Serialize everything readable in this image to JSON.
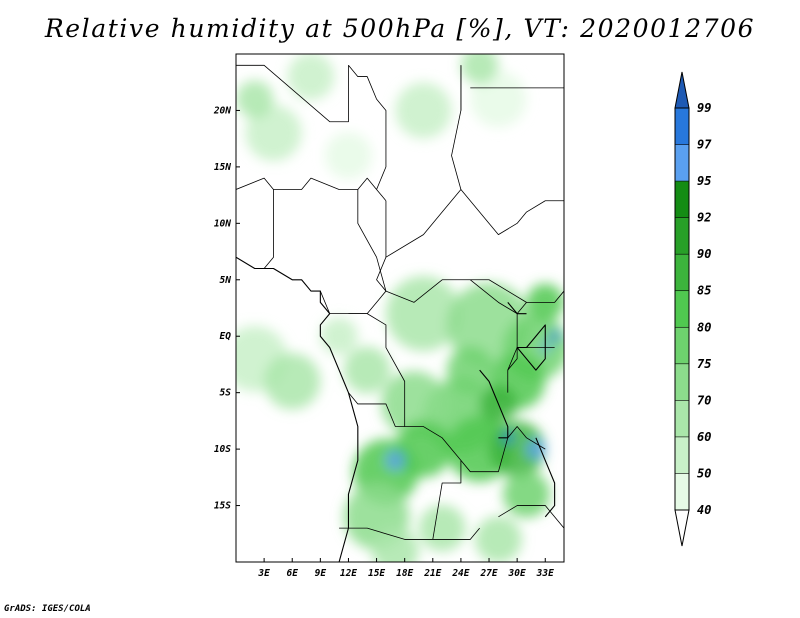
{
  "title": "Relative humidity at 500hPa [%], VT: 2020012706",
  "credit": "GrADS: IGES/COLA",
  "map": {
    "lon_range": [
      0,
      35
    ],
    "lat_range": [
      -20,
      25
    ],
    "x_ticks": [
      {
        "value": 3,
        "label": "3E"
      },
      {
        "value": 6,
        "label": "6E"
      },
      {
        "value": 9,
        "label": "9E"
      },
      {
        "value": 12,
        "label": "12E"
      },
      {
        "value": 15,
        "label": "15E"
      },
      {
        "value": 18,
        "label": "18E"
      },
      {
        "value": 21,
        "label": "21E"
      },
      {
        "value": 24,
        "label": "24E"
      },
      {
        "value": 27,
        "label": "27E"
      },
      {
        "value": 30,
        "label": "30E"
      },
      {
        "value": 33,
        "label": "33E"
      }
    ],
    "y_ticks": [
      {
        "value": 20,
        "label": "20N"
      },
      {
        "value": 15,
        "label": "15N"
      },
      {
        "value": 10,
        "label": "10N"
      },
      {
        "value": 5,
        "label": "5N"
      },
      {
        "value": 0,
        "label": "EQ"
      },
      {
        "value": -5,
        "label": "5S"
      },
      {
        "value": -10,
        "label": "10S"
      },
      {
        "value": -15,
        "label": "15S"
      }
    ]
  },
  "colorbar": {
    "levels": [
      {
        "value": 40,
        "label": "40",
        "color": "#e6fae6"
      },
      {
        "value": 50,
        "label": "50",
        "color": "#c8f0c8"
      },
      {
        "value": 60,
        "label": "60",
        "color": "#aae6aa"
      },
      {
        "value": 70,
        "label": "70",
        "color": "#8cdc8c"
      },
      {
        "value": 75,
        "label": "75",
        "color": "#6ed26e"
      },
      {
        "value": 80,
        "label": "80",
        "color": "#50c850"
      },
      {
        "value": 85,
        "label": "85",
        "color": "#3cb43c"
      },
      {
        "value": 90,
        "label": "90",
        "color": "#28a028"
      },
      {
        "value": 92,
        "label": "92",
        "color": "#148c14"
      },
      {
        "value": 95,
        "label": "95",
        "color": "#5aa0f0"
      },
      {
        "value": 97,
        "label": "97",
        "color": "#2878dc"
      },
      {
        "value": 99,
        "label": "99",
        "color": "#1e5ab4"
      }
    ],
    "low_color": "#ffffff",
    "high_color": "#1e5ab4"
  },
  "humidity_blobs": [
    {
      "lon": 8,
      "lat": 23,
      "r": 2.5,
      "level": 1
    },
    {
      "lon": 4,
      "lat": 18,
      "r": 3,
      "level": 1
    },
    {
      "lon": 20,
      "lat": 20,
      "r": 3,
      "level": 1
    },
    {
      "lon": 28,
      "lat": 21,
      "r": 3,
      "level": 0
    },
    {
      "lon": 12,
      "lat": 16,
      "r": 2.5,
      "level": 0
    },
    {
      "lon": 2,
      "lat": 21,
      "r": 2,
      "level": 2
    },
    {
      "lon": 26,
      "lat": 24,
      "r": 2,
      "level": 2
    },
    {
      "lon": 2,
      "lat": -2,
      "r": 3.5,
      "level": 1
    },
    {
      "lon": 6,
      "lat": -4,
      "r": 3,
      "level": 2
    },
    {
      "lon": 11,
      "lat": 0,
      "r": 2,
      "level": 1
    },
    {
      "lon": 14,
      "lat": -3,
      "r": 2.5,
      "level": 2
    },
    {
      "lon": 20,
      "lat": 2,
      "r": 4,
      "level": 2
    },
    {
      "lon": 27,
      "lat": 1,
      "r": 4.5,
      "level": 3
    },
    {
      "lon": 32,
      "lat": -1,
      "r": 3.5,
      "level": 4
    },
    {
      "lon": 30,
      "lat": -4,
      "r": 3,
      "level": 5
    },
    {
      "lon": 24,
      "lat": -7,
      "r": 4,
      "level": 4
    },
    {
      "lon": 19,
      "lat": -6,
      "r": 3.5,
      "level": 3
    },
    {
      "lon": 16,
      "lat": -12,
      "r": 3.5,
      "level": 5
    },
    {
      "lon": 20,
      "lat": -10,
      "r": 3,
      "level": 5
    },
    {
      "lon": 26,
      "lat": -10,
      "r": 3.5,
      "level": 5
    },
    {
      "lon": 30,
      "lat": -10,
      "r": 3,
      "level": 6
    },
    {
      "lon": 31,
      "lat": -14,
      "r": 2.5,
      "level": 4
    },
    {
      "lon": 15,
      "lat": -16,
      "r": 3.5,
      "level": 3
    },
    {
      "lon": 22,
      "lat": -17,
      "r": 2.5,
      "level": 2
    },
    {
      "lon": 28,
      "lat": -18,
      "r": 2.5,
      "level": 2
    },
    {
      "lon": 17,
      "lat": -19,
      "r": 2.5,
      "level": 2
    },
    {
      "lon": 33,
      "lat": 3,
      "r": 2,
      "level": 5
    },
    {
      "lon": 25,
      "lat": -3,
      "r": 2.5,
      "level": 4
    },
    {
      "lon": 28,
      "lat": -6,
      "r": 2,
      "level": 6
    },
    {
      "lon": 17,
      "lat": -11,
      "r": 1,
      "level": 9
    },
    {
      "lon": 32,
      "lat": -10,
      "r": 1,
      "level": 9
    },
    {
      "lon": 29,
      "lat": -9,
      "r": 0.6,
      "level": 10
    },
    {
      "lon": 34,
      "lat": 0,
      "r": 0.6,
      "level": 10
    },
    {
      "lon": 33,
      "lat": -1,
      "r": 0.5,
      "level": 9
    }
  ],
  "borders": [
    [
      [
        0,
        13
      ],
      [
        3,
        14
      ],
      [
        4,
        13
      ],
      [
        7,
        13
      ],
      [
        8,
        14
      ],
      [
        11,
        13
      ],
      [
        13,
        13
      ],
      [
        14,
        14
      ],
      [
        15,
        13
      ],
      [
        16,
        12
      ]
    ],
    [
      [
        4,
        13
      ],
      [
        4,
        7
      ],
      [
        3,
        6
      ]
    ],
    [
      [
        13,
        13
      ],
      [
        13,
        10
      ],
      [
        15,
        7
      ],
      [
        16,
        4
      ],
      [
        14,
        2
      ],
      [
        12,
        2
      ]
    ],
    [
      [
        9,
        4
      ],
      [
        10,
        2
      ],
      [
        12,
        2
      ],
      [
        14,
        2
      ],
      [
        16,
        1
      ],
      [
        16,
        -1
      ],
      [
        18,
        -4
      ],
      [
        18,
        -8
      ],
      [
        20,
        -8
      ],
      [
        22,
        -9
      ],
      [
        24,
        -11
      ],
      [
        25,
        -12
      ],
      [
        28,
        -12
      ],
      [
        29,
        -9
      ],
      [
        30,
        -8
      ],
      [
        31,
        -9
      ],
      [
        33,
        -10
      ]
    ],
    [
      [
        16,
        12
      ],
      [
        16,
        7
      ],
      [
        15,
        5
      ],
      [
        16,
        4
      ]
    ],
    [
      [
        16,
        7
      ],
      [
        20,
        9
      ],
      [
        22,
        11
      ],
      [
        24,
        13
      ],
      [
        23,
        16
      ],
      [
        24,
        20
      ],
      [
        24,
        24
      ]
    ],
    [
      [
        16,
        4
      ],
      [
        19,
        3
      ],
      [
        22,
        5
      ],
      [
        25,
        5
      ],
      [
        27,
        5
      ],
      [
        29,
        4
      ],
      [
        31,
        3
      ]
    ],
    [
      [
        24,
        13
      ],
      [
        27,
        10
      ],
      [
        28,
        9
      ],
      [
        30,
        10
      ],
      [
        31,
        11
      ],
      [
        33,
        12
      ],
      [
        35,
        12
      ]
    ],
    [
      [
        25,
        5
      ],
      [
        28,
        3
      ],
      [
        30,
        2
      ],
      [
        30,
        -1
      ],
      [
        29,
        -3
      ],
      [
        29,
        -5
      ]
    ],
    [
      [
        30,
        2
      ],
      [
        31,
        3
      ],
      [
        34,
        3
      ],
      [
        35,
        4
      ]
    ],
    [
      [
        29,
        -3
      ],
      [
        30,
        -2
      ],
      [
        30,
        -1
      ],
      [
        31,
        -1
      ],
      [
        34,
        -1
      ]
    ],
    [
      [
        12,
        -5
      ],
      [
        13,
        -6
      ],
      [
        16,
        -6
      ],
      [
        17,
        -8
      ],
      [
        18,
        -8
      ]
    ],
    [
      [
        11,
        -17
      ],
      [
        14,
        -17
      ],
      [
        18,
        -18
      ],
      [
        20,
        -18
      ],
      [
        21,
        -18
      ],
      [
        23,
        -18
      ],
      [
        25,
        -18
      ],
      [
        26,
        -17
      ]
    ],
    [
      [
        21,
        -18
      ],
      [
        22,
        -13
      ],
      [
        24,
        -13
      ],
      [
        24,
        -11
      ]
    ],
    [
      [
        28,
        -16
      ],
      [
        30,
        -15
      ],
      [
        33,
        -15
      ],
      [
        35,
        -17
      ]
    ],
    [
      [
        12,
        24
      ],
      [
        13,
        23
      ],
      [
        14,
        23
      ],
      [
        15,
        21
      ],
      [
        16,
        20
      ],
      [
        16,
        15
      ],
      [
        15,
        13
      ]
    ],
    [
      [
        0,
        24
      ],
      [
        3,
        24
      ],
      [
        10,
        19
      ],
      [
        12,
        19
      ],
      [
        12,
        24
      ]
    ],
    [
      [
        24,
        20
      ],
      [
        24,
        24
      ]
    ],
    [
      [
        25,
        22
      ],
      [
        35,
        22
      ]
    ]
  ],
  "coastlines": [
    [
      [
        0,
        7
      ],
      [
        2,
        6
      ],
      [
        4,
        6
      ],
      [
        6,
        5
      ],
      [
        7,
        5
      ],
      [
        8,
        4
      ],
      [
        9,
        4
      ],
      [
        9,
        3
      ],
      [
        10,
        2
      ],
      [
        9,
        1
      ],
      [
        9,
        0
      ],
      [
        10,
        -1
      ],
      [
        11,
        -3
      ],
      [
        12,
        -5
      ],
      [
        13,
        -8
      ],
      [
        13,
        -11
      ],
      [
        12,
        -14
      ],
      [
        12,
        -17
      ],
      [
        11,
        -20
      ]
    ],
    [
      [
        26,
        -3
      ],
      [
        27,
        -4
      ],
      [
        28,
        -6
      ],
      [
        29,
        -8
      ],
      [
        29,
        -9
      ],
      [
        28,
        -9
      ]
    ],
    [
      [
        32,
        -9
      ],
      [
        33,
        -11
      ],
      [
        34,
        -13
      ],
      [
        34,
        -15
      ],
      [
        33,
        -16
      ]
    ],
    [
      [
        30,
        -1
      ],
      [
        31,
        -1
      ],
      [
        32,
        0
      ],
      [
        33,
        1
      ],
      [
        33,
        -2
      ],
      [
        32,
        -3
      ],
      [
        31,
        -2
      ],
      [
        30,
        -1
      ]
    ],
    [
      [
        29,
        3
      ],
      [
        30,
        2
      ],
      [
        31,
        2
      ]
    ]
  ]
}
